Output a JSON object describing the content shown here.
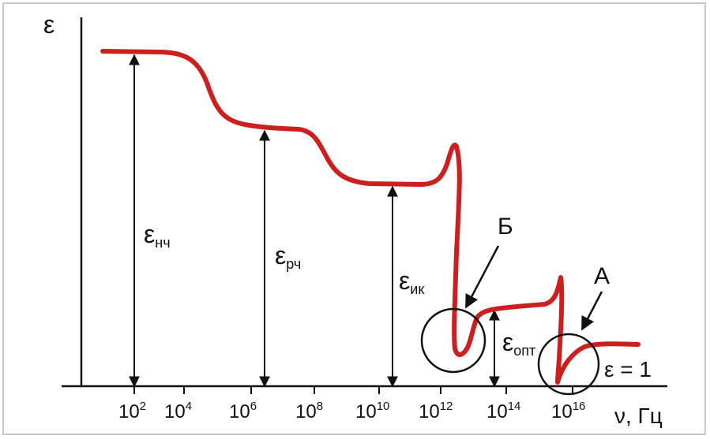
{
  "diagram": {
    "y_axis_label": "ε",
    "x_axis_label": "ν, Гц",
    "x_ticks": [
      {
        "base": "10",
        "exp": "2"
      },
      {
        "base": "10",
        "exp": "4"
      },
      {
        "base": "10",
        "exp": "6"
      },
      {
        "base": "10",
        "exp": "8"
      },
      {
        "base": "10",
        "exp": "10"
      },
      {
        "base": "10",
        "exp": "12"
      },
      {
        "base": "10",
        "exp": "14"
      },
      {
        "base": "10",
        "exp": "16"
      }
    ],
    "levels": [
      {
        "symbol": "ε",
        "subscript": "нч"
      },
      {
        "symbol": "ε",
        "subscript": "рч"
      },
      {
        "symbol": "ε",
        "subscript": "ик"
      },
      {
        "symbol": "ε",
        "subscript": "опт"
      }
    ],
    "epsilon_one_label": "ε = 1",
    "markers": {
      "B": "Б",
      "A": "А"
    },
    "colors": {
      "curve": "#cc1f1f",
      "axes": "#111111",
      "frame": "#c9c9c9"
    }
  }
}
